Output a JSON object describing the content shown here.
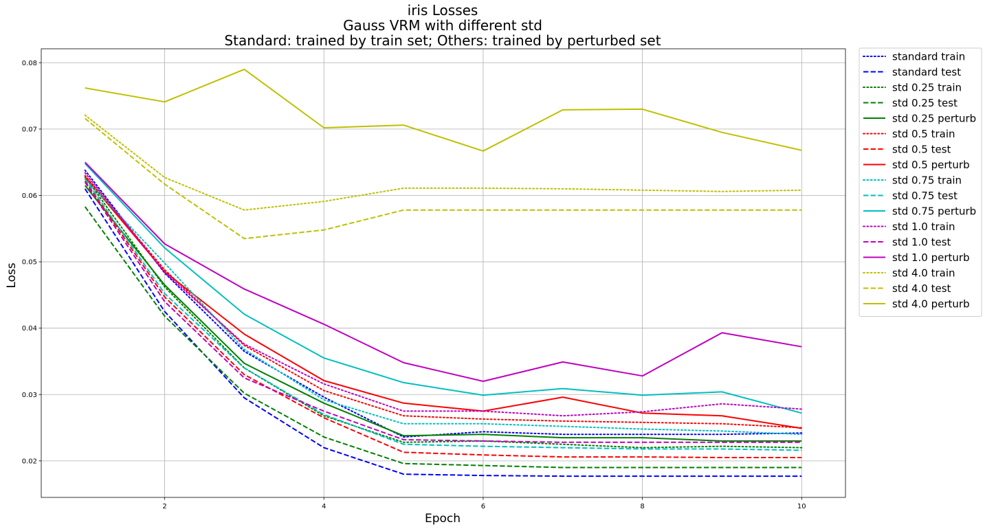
{
  "chart_data": {
    "type": "line",
    "title_lines": [
      "iris Losses",
      "Gauss VRM with different std",
      "Standard: trained by train set; Others: trained by perturbed set"
    ],
    "xlabel": "Epoch",
    "ylabel": "Loss",
    "xlim": [
      0.45,
      10.55
    ],
    "ylim": [
      0.0145,
      0.0821
    ],
    "xticks": [
      2,
      4,
      6,
      8,
      10
    ],
    "yticks": [
      0.02,
      0.03,
      0.04,
      0.05,
      0.06,
      0.07,
      0.08
    ],
    "xtick_labels": [
      "2",
      "4",
      "6",
      "8",
      "10"
    ],
    "ytick_labels": [
      "0.02",
      "0.03",
      "0.04",
      "0.05",
      "0.06",
      "0.07",
      "0.08"
    ],
    "grid": true,
    "legend_position": "outside-right",
    "x": [
      1,
      2,
      3,
      4,
      5,
      6,
      7,
      8,
      9,
      10
    ],
    "series": [
      {
        "name": "standard train",
        "color": "#0000ff",
        "style": "dotted",
        "values": [
          0.0638,
          0.0483,
          0.0365,
          0.0296,
          0.0236,
          0.0244,
          0.024,
          0.024,
          0.024,
          0.0242
        ]
      },
      {
        "name": "standard test",
        "color": "#0000ff",
        "style": "dashed",
        "values": [
          0.061,
          0.0425,
          0.0295,
          0.022,
          0.018,
          0.0178,
          0.0177,
          0.0177,
          0.0177,
          0.0177
        ]
      },
      {
        "name": "std 0.25 train",
        "color": "#008000",
        "style": "dotted",
        "values": [
          0.0628,
          0.0462,
          0.034,
          0.0268,
          0.0228,
          0.023,
          0.0225,
          0.022,
          0.0222,
          0.022
        ]
      },
      {
        "name": "std 0.25 test",
        "color": "#008000",
        "style": "dashed",
        "values": [
          0.0583,
          0.0418,
          0.0302,
          0.0236,
          0.0196,
          0.0193,
          0.019,
          0.019,
          0.019,
          0.019
        ]
      },
      {
        "name": "std 0.25 perturb",
        "color": "#008000",
        "style": "solid",
        "values": [
          0.0615,
          0.0465,
          0.0347,
          0.0287,
          0.0238,
          0.024,
          0.0235,
          0.0235,
          0.023,
          0.023
        ]
      },
      {
        "name": "std 0.5 train",
        "color": "#ff0000",
        "style": "dotted",
        "values": [
          0.063,
          0.0488,
          0.0374,
          0.0306,
          0.0268,
          0.0263,
          0.026,
          0.0258,
          0.0256,
          0.025
        ]
      },
      {
        "name": "std 0.5 test",
        "color": "#ff0000",
        "style": "dashed",
        "values": [
          0.0622,
          0.0447,
          0.033,
          0.0265,
          0.0213,
          0.0209,
          0.0206,
          0.0206,
          0.0205,
          0.0205
        ]
      },
      {
        "name": "std 0.5 perturb",
        "color": "#ff0000",
        "style": "solid",
        "values": [
          0.0628,
          0.0485,
          0.0391,
          0.0321,
          0.0287,
          0.0275,
          0.0296,
          0.0272,
          0.0268,
          0.0249
        ]
      },
      {
        "name": "std 0.75 train",
        "color": "#00bfbf",
        "style": "dotted",
        "values": [
          0.0625,
          0.0498,
          0.0368,
          0.0292,
          0.0256,
          0.0256,
          0.0252,
          0.0248,
          0.0245,
          0.024
        ]
      },
      {
        "name": "std 0.75 test",
        "color": "#00bfbf",
        "style": "dashed",
        "values": [
          0.0625,
          0.0452,
          0.034,
          0.027,
          0.0225,
          0.0222,
          0.022,
          0.0218,
          0.0218,
          0.0216
        ]
      },
      {
        "name": "std 0.75 perturb",
        "color": "#00bfbf",
        "style": "solid",
        "values": [
          0.0648,
          0.0521,
          0.0421,
          0.0355,
          0.0318,
          0.0299,
          0.0309,
          0.0299,
          0.0304,
          0.0272
        ]
      },
      {
        "name": "std 1.0 train",
        "color": "#bf00bf",
        "style": "dotted",
        "values": [
          0.0634,
          0.0484,
          0.0376,
          0.0316,
          0.0275,
          0.0275,
          0.0268,
          0.0274,
          0.0286,
          0.0278
        ]
      },
      {
        "name": "std 1.0 test",
        "color": "#bf00bf",
        "style": "dashed",
        "values": [
          0.062,
          0.044,
          0.0325,
          0.0275,
          0.0232,
          0.023,
          0.0228,
          0.0228,
          0.0228,
          0.0228
        ]
      },
      {
        "name": "std 1.0 perturb",
        "color": "#bf00bf",
        "style": "solid",
        "values": [
          0.065,
          0.0527,
          0.0459,
          0.0406,
          0.0348,
          0.032,
          0.0349,
          0.0328,
          0.0393,
          0.0372
        ]
      },
      {
        "name": "std 4.0 train",
        "color": "#bfbf00",
        "style": "dotted",
        "values": [
          0.0721,
          0.0627,
          0.0578,
          0.0591,
          0.0611,
          0.0611,
          0.061,
          0.0608,
          0.0606,
          0.0608
        ]
      },
      {
        "name": "std 4.0 test",
        "color": "#bfbf00",
        "style": "dashed",
        "values": [
          0.0716,
          0.0617,
          0.0535,
          0.0548,
          0.0578,
          0.0578,
          0.0578,
          0.0578,
          0.0578,
          0.0578
        ]
      },
      {
        "name": "std 4.0 perturb",
        "color": "#bfbf00",
        "style": "solid",
        "values": [
          0.0762,
          0.0741,
          0.079,
          0.0702,
          0.0706,
          0.0667,
          0.0729,
          0.073,
          0.0695,
          0.0668
        ]
      }
    ]
  }
}
